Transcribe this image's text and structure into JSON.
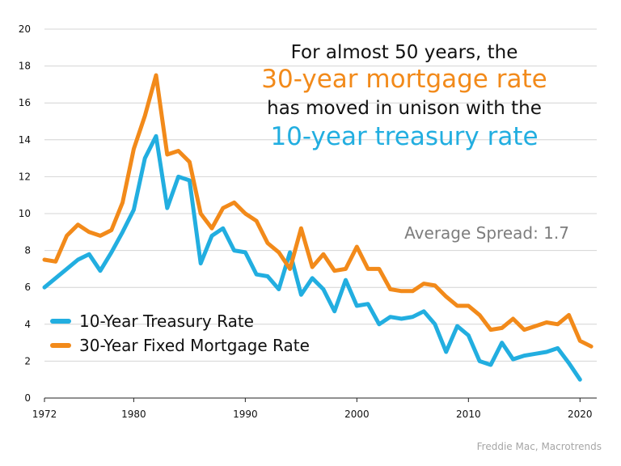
{
  "colors": {
    "treasury": "#22aee0",
    "mortgage": "#f28a1a",
    "grid": "#d4d4d4",
    "axis": "#222222"
  },
  "headline": {
    "line1": "For almost 50 years, the",
    "line2": "30-year mortgage rate",
    "line3": "has moved in unison with the",
    "line4": "10-year treasury rate"
  },
  "annotation": "Average Spread: 1.7",
  "source": "Freddie Mac, Macrotrends",
  "chart_data": {
    "type": "line",
    "x": [
      1972,
      1973,
      1974,
      1975,
      1976,
      1977,
      1978,
      1979,
      1980,
      1981,
      1982,
      1983,
      1984,
      1985,
      1986,
      1987,
      1988,
      1989,
      1990,
      1991,
      1992,
      1993,
      1994,
      1995,
      1996,
      1997,
      1998,
      1999,
      2000,
      2001,
      2002,
      2003,
      2004,
      2005,
      2006,
      2007,
      2008,
      2009,
      2010,
      2011,
      2012,
      2013,
      2014,
      2015,
      2016,
      2017,
      2018,
      2019,
      2020,
      2021
    ],
    "series": [
      {
        "name": "10-Year Treasury Rate",
        "values": [
          6.0,
          6.5,
          7.0,
          7.5,
          7.8,
          6.9,
          7.9,
          9.0,
          10.2,
          13.0,
          14.2,
          10.3,
          12.0,
          11.8,
          7.3,
          8.8,
          9.2,
          8.0,
          7.9,
          6.7,
          6.6,
          5.9,
          7.9,
          5.6,
          6.5,
          5.9,
          4.7,
          6.4,
          5.0,
          5.1,
          4.0,
          4.4,
          4.3,
          4.4,
          4.7,
          4.0,
          2.5,
          3.9,
          3.4,
          2.0,
          1.8,
          3.0,
          2.1,
          2.3,
          2.4,
          2.5,
          2.7,
          1.9,
          1.0,
          null
        ]
      },
      {
        "name": "30-Year Fixed Mortgage Rate",
        "values": [
          7.5,
          7.4,
          8.8,
          9.4,
          9.0,
          8.8,
          9.1,
          10.6,
          13.5,
          15.3,
          17.5,
          13.2,
          13.4,
          12.8,
          10.0,
          9.2,
          10.3,
          10.6,
          10.0,
          9.6,
          8.4,
          7.9,
          7.0,
          9.2,
          7.1,
          7.8,
          6.9,
          7.0,
          8.2,
          7.0,
          7.0,
          5.9,
          5.8,
          5.8,
          6.2,
          6.1,
          5.5,
          5.0,
          5.0,
          4.5,
          3.7,
          3.8,
          4.3,
          3.7,
          3.9,
          4.1,
          4.0,
          4.5,
          3.1,
          2.8
        ]
      }
    ],
    "xticks": [
      1972,
      1980,
      1990,
      2000,
      2010,
      2020
    ],
    "yticks": [
      0,
      2,
      4,
      6,
      8,
      10,
      12,
      14,
      16,
      18,
      20
    ],
    "xlim": [
      1972,
      2021.5
    ],
    "ylim": [
      0,
      20
    ],
    "grid": true,
    "legend": "left-middle"
  }
}
